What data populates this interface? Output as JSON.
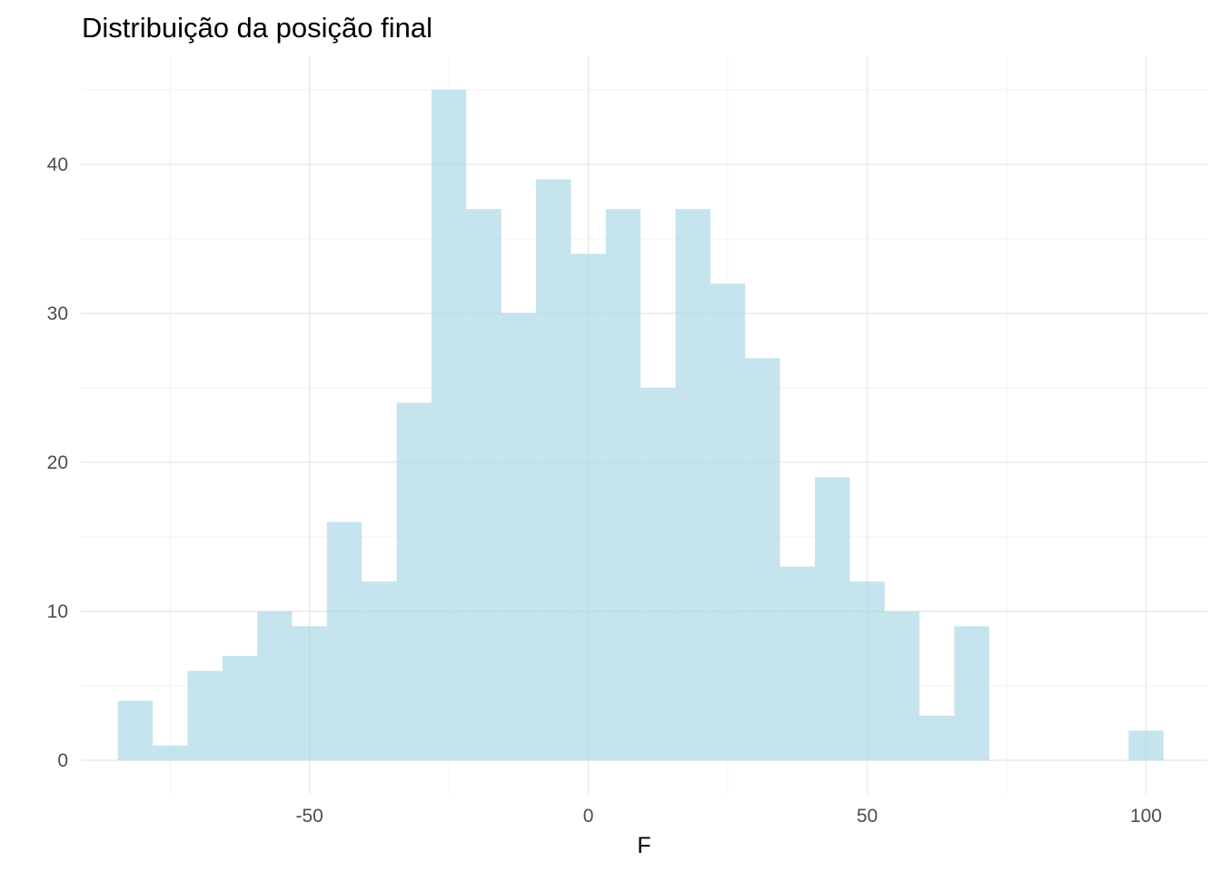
{
  "chart_data": {
    "type": "bar",
    "title": "Distribuição da posição final",
    "xlabel": "F",
    "ylabel": "",
    "xlim": [
      -91,
      111
    ],
    "ylim": [
      -2.25,
      47.25
    ],
    "x_ticks": [
      -50,
      0,
      50,
      100
    ],
    "x_tick_labels": [
      "-50",
      "0",
      "50",
      "100"
    ],
    "y_ticks": [
      0,
      10,
      20,
      30,
      40
    ],
    "y_tick_labels": [
      "0",
      "10",
      "20",
      "30",
      "40"
    ],
    "x_minor_ticks": [
      -75,
      -25,
      25,
      75
    ],
    "y_minor_ticks": [
      5,
      15,
      25,
      35,
      45
    ],
    "grid": true,
    "bin_width": 6.25,
    "bins": [
      {
        "x0": -84.375,
        "x1": -78.125,
        "count": 4
      },
      {
        "x0": -78.125,
        "x1": -71.875,
        "count": 1
      },
      {
        "x0": -71.875,
        "x1": -65.625,
        "count": 6
      },
      {
        "x0": -65.625,
        "x1": -59.375,
        "count": 7
      },
      {
        "x0": -59.375,
        "x1": -53.125,
        "count": 10
      },
      {
        "x0": -53.125,
        "x1": -46.875,
        "count": 9
      },
      {
        "x0": -46.875,
        "x1": -40.625,
        "count": 16
      },
      {
        "x0": -40.625,
        "x1": -34.375,
        "count": 12
      },
      {
        "x0": -34.375,
        "x1": -28.125,
        "count": 24
      },
      {
        "x0": -28.125,
        "x1": -21.875,
        "count": 45
      },
      {
        "x0": -21.875,
        "x1": -15.625,
        "count": 37
      },
      {
        "x0": -15.625,
        "x1": -9.375,
        "count": 30
      },
      {
        "x0": -9.375,
        "x1": -3.125,
        "count": 39
      },
      {
        "x0": -3.125,
        "x1": 3.125,
        "count": 34
      },
      {
        "x0": 3.125,
        "x1": 9.375,
        "count": 37
      },
      {
        "x0": 9.375,
        "x1": 15.625,
        "count": 25
      },
      {
        "x0": 15.625,
        "x1": 21.875,
        "count": 37
      },
      {
        "x0": 21.875,
        "x1": 28.125,
        "count": 32
      },
      {
        "x0": 28.125,
        "x1": 34.375,
        "count": 27
      },
      {
        "x0": 34.375,
        "x1": 40.625,
        "count": 13
      },
      {
        "x0": 40.625,
        "x1": 46.875,
        "count": 19
      },
      {
        "x0": 46.875,
        "x1": 53.125,
        "count": 12
      },
      {
        "x0": 53.125,
        "x1": 59.375,
        "count": 10
      },
      {
        "x0": 59.375,
        "x1": 65.625,
        "count": 3
      },
      {
        "x0": 65.625,
        "x1": 71.875,
        "count": 9
      },
      {
        "x0": 71.875,
        "x1": 78.125,
        "count": 0
      },
      {
        "x0": 78.125,
        "x1": 84.375,
        "count": 0
      },
      {
        "x0": 84.375,
        "x1": 90.625,
        "count": 0
      },
      {
        "x0": 90.625,
        "x1": 96.875,
        "count": 0
      },
      {
        "x0": 96.875,
        "x1": 103.125,
        "count": 2
      }
    ],
    "colors": {
      "bar_fill": "#add8e6",
      "grid": "#ebebeb",
      "tick_text": "#4d4d4d",
      "text": "#000000"
    }
  }
}
